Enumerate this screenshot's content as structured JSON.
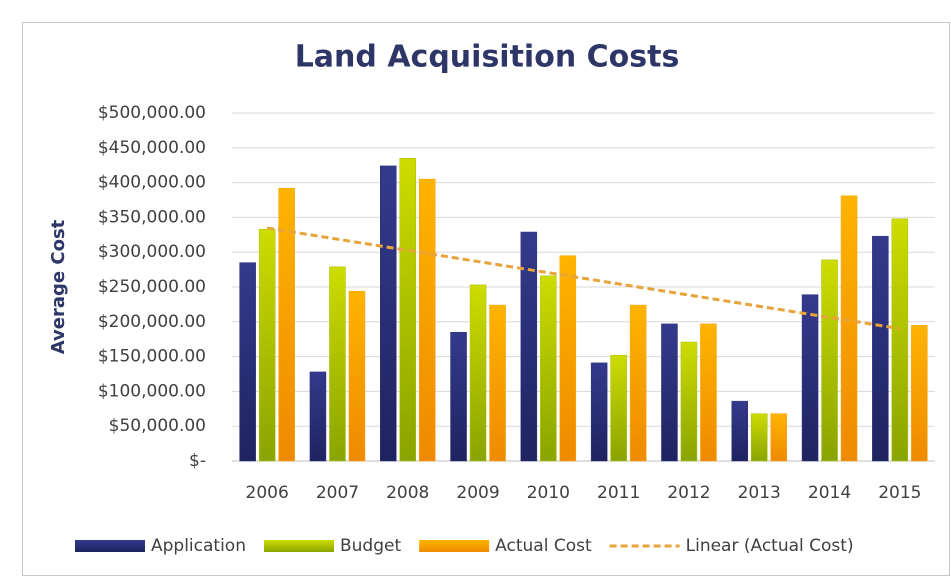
{
  "chart_data": {
    "type": "bar",
    "title": "Land Acquisition Costs",
    "y_label": "Average Cost",
    "categories": [
      "2006",
      "2007",
      "2008",
      "2009",
      "2010",
      "2011",
      "2012",
      "2013",
      "2014",
      "2015"
    ],
    "series": [
      {
        "name": "Application",
        "color": "#2b2f7a",
        "values": [
          285000,
          128000,
          424000,
          185000,
          329000,
          141000,
          197000,
          86000,
          239000,
          323000
        ]
      },
      {
        "name": "Budget",
        "color": "#a9c000",
        "values": [
          333000,
          279000,
          435000,
          253000,
          266000,
          152000,
          171000,
          68000,
          289000,
          348000
        ]
      },
      {
        "name": "Actual Cost",
        "color": "#f7a300",
        "values": [
          392000,
          244000,
          405000,
          224000,
          295000,
          224000,
          197000,
          68000,
          381000,
          195000
        ]
      }
    ],
    "trendline": {
      "name": "Linear (Actual Cost)",
      "series": 2,
      "color": "#e8a33a"
    },
    "ylim": [
      0,
      500000
    ],
    "yticks": [
      {
        "value": 0,
        "label": "$-"
      },
      {
        "value": 50000,
        "label": "$50,000.00"
      },
      {
        "value": 100000,
        "label": "$100,000.00"
      },
      {
        "value": 150000,
        "label": "$150,000.00"
      },
      {
        "value": 200000,
        "label": "$200,000.00"
      },
      {
        "value": 250000,
        "label": "$250,000.00"
      },
      {
        "value": 300000,
        "label": "$300,000.00"
      },
      {
        "value": 350000,
        "label": "$350,000.00"
      },
      {
        "value": 400000,
        "label": "$400,000.00"
      },
      {
        "value": 450000,
        "label": "$450,000.00"
      },
      {
        "value": 500000,
        "label": "$500,000.00"
      }
    ],
    "grid": true,
    "legend": "bottom"
  }
}
